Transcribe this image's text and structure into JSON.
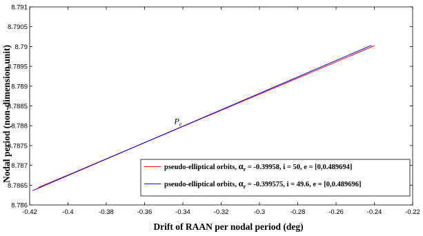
{
  "chart_data": {
    "type": "line",
    "title": "",
    "xlabel": "Drift of RAAN per nodal period (deg)",
    "ylabel": "Nodal period (non-dimension unit)",
    "xlim": [
      -0.42,
      -0.22
    ],
    "ylim": [
      8.786,
      8.791
    ],
    "xticks": [
      -0.42,
      -0.4,
      -0.38,
      -0.36,
      -0.34,
      -0.32,
      -0.3,
      -0.28,
      -0.26,
      -0.24,
      -0.22
    ],
    "xtick_labels": [
      "-0.42",
      "-0.4",
      "-0.38",
      "-0.36",
      "-0.34",
      "-0.32",
      "-0.3",
      "-0.28",
      "-0.26",
      "-0.24",
      "-0.22"
    ],
    "yticks": [
      8.786,
      8.7865,
      8.787,
      8.7875,
      8.788,
      8.7885,
      8.789,
      8.7895,
      8.79,
      8.7905,
      8.791
    ],
    "ytick_labels": [
      "8.786",
      "8.7865",
      "8.787",
      "8.7875",
      "8.788",
      "8.7885",
      "8.789",
      "8.7895",
      "8.79",
      "8.7905",
      "8.791"
    ],
    "grid": false,
    "legend_position": "bottom-right",
    "series": [
      {
        "name": "pseudo-elliptical orbits, αr = -0.39958, i = 50, e = [0,0.489694]",
        "legend_prefix": "pseudo-elliptical orbits, ",
        "legend_alpha": "α",
        "legend_sub": "r",
        "legend_suffix": " = -0.39958, i = 50, e = [0,0.489694]",
        "color": "#ff0000",
        "x": [
          -0.4155,
          -0.24
        ],
        "y": [
          8.78644,
          8.79002
        ]
      },
      {
        "name": "pseudo-elliptical orbits, αr = -0.399575, i = 49.6, e = [0,0.489696]",
        "legend_prefix": "pseudo-elliptical orbits, ",
        "legend_alpha": "α",
        "legend_sub": "r",
        "legend_suffix": " = -0.399575, i = 49.6, e = [0,0.489696]",
        "color": "#0000ff",
        "x": [
          -0.4185,
          -0.2415
        ],
        "y": [
          8.78636,
          8.79003
        ]
      }
    ],
    "annotations": [
      {
        "text": "P",
        "subscript": "e",
        "x": -0.3445,
        "y": 8.78805
      }
    ]
  }
}
